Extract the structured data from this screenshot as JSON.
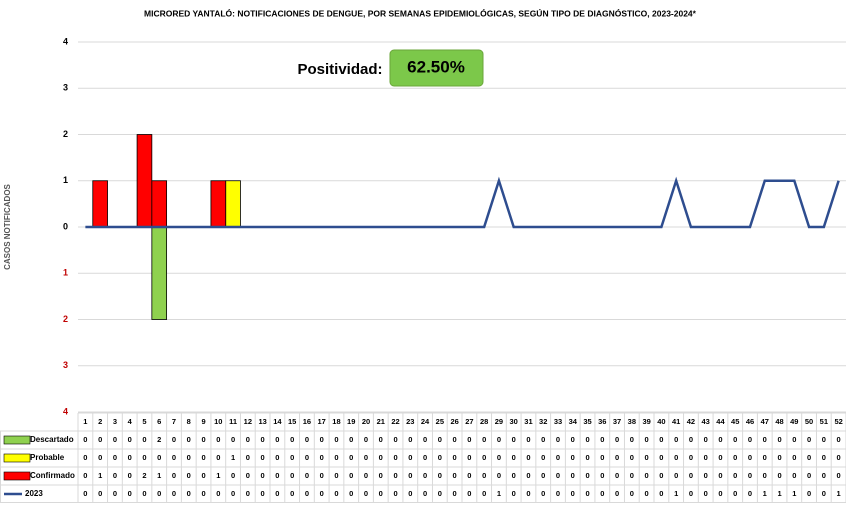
{
  "chart_data": {
    "type": "bar_line_table",
    "title": "MICRORED YANTALÓ: NOTIFICACIONES DE DENGUE, POR SEMANAS EPIDEMIOLÓGICAS, SEGÚN TIPO DE DIAGNÓSTICO, 2023-2024*",
    "y_axis_label": "CASOS NOTIFICADOS",
    "annotation": {
      "label": "Positividad:",
      "value": 62.5,
      "value_label": "62.50%",
      "color": "#7cc84a"
    },
    "categories": [
      1,
      2,
      3,
      4,
      5,
      6,
      7,
      8,
      9,
      10,
      11,
      12,
      13,
      14,
      15,
      16,
      17,
      18,
      19,
      20,
      21,
      22,
      23,
      24,
      25,
      26,
      27,
      28,
      29,
      30,
      31,
      32,
      33,
      34,
      35,
      36,
      37,
      38,
      39,
      40,
      41,
      42,
      43,
      44,
      45,
      46,
      47,
      48,
      49,
      50,
      51,
      52
    ],
    "ylim": [
      -4,
      4
    ],
    "yticks": [
      4,
      3,
      2,
      1,
      0,
      {
        "value": -1,
        "label": "1"
      },
      {
        "value": -2,
        "label": "2"
      },
      {
        "value": -3,
        "label": "3"
      },
      {
        "value": -4,
        "label": "4"
      }
    ],
    "negative_tick_color": "#c00000",
    "grid": true,
    "series": [
      {
        "name": "Descartado",
        "color": "#8fd14f",
        "kind": "bar",
        "direction": "down",
        "values": [
          0,
          0,
          0,
          0,
          0,
          2,
          0,
          0,
          0,
          0,
          0,
          0,
          0,
          0,
          0,
          0,
          0,
          0,
          0,
          0,
          0,
          0,
          0,
          0,
          0,
          0,
          0,
          0,
          0,
          0,
          0,
          0,
          0,
          0,
          0,
          0,
          0,
          0,
          0,
          0,
          0,
          0,
          0,
          0,
          0,
          0,
          0,
          0,
          0,
          0,
          0,
          0
        ]
      },
      {
        "name": "Probable",
        "color": "#ffff00",
        "kind": "bar",
        "direction": "up",
        "values": [
          0,
          0,
          0,
          0,
          0,
          0,
          0,
          0,
          0,
          0,
          1,
          0,
          0,
          0,
          0,
          0,
          0,
          0,
          0,
          0,
          0,
          0,
          0,
          0,
          0,
          0,
          0,
          0,
          0,
          0,
          0,
          0,
          0,
          0,
          0,
          0,
          0,
          0,
          0,
          0,
          0,
          0,
          0,
          0,
          0,
          0,
          0,
          0,
          0,
          0,
          0,
          0
        ]
      },
      {
        "name": "Confirmado",
        "color": "#ff0000",
        "kind": "bar",
        "direction": "up",
        "values": [
          0,
          1,
          0,
          0,
          2,
          1,
          0,
          0,
          0,
          1,
          0,
          0,
          0,
          0,
          0,
          0,
          0,
          0,
          0,
          0,
          0,
          0,
          0,
          0,
          0,
          0,
          0,
          0,
          0,
          0,
          0,
          0,
          0,
          0,
          0,
          0,
          0,
          0,
          0,
          0,
          0,
          0,
          0,
          0,
          0,
          0,
          0,
          0,
          0,
          0,
          0,
          0
        ]
      },
      {
        "name": "2023",
        "color": "#2e4d8f",
        "kind": "line",
        "values": [
          0,
          0,
          0,
          0,
          0,
          0,
          0,
          0,
          0,
          0,
          0,
          0,
          0,
          0,
          0,
          0,
          0,
          0,
          0,
          0,
          0,
          0,
          0,
          0,
          0,
          0,
          0,
          0,
          1,
          0,
          0,
          0,
          0,
          0,
          0,
          0,
          0,
          0,
          0,
          0,
          1,
          0,
          0,
          0,
          0,
          0,
          1,
          1,
          1,
          0,
          0,
          1
        ]
      }
    ]
  }
}
